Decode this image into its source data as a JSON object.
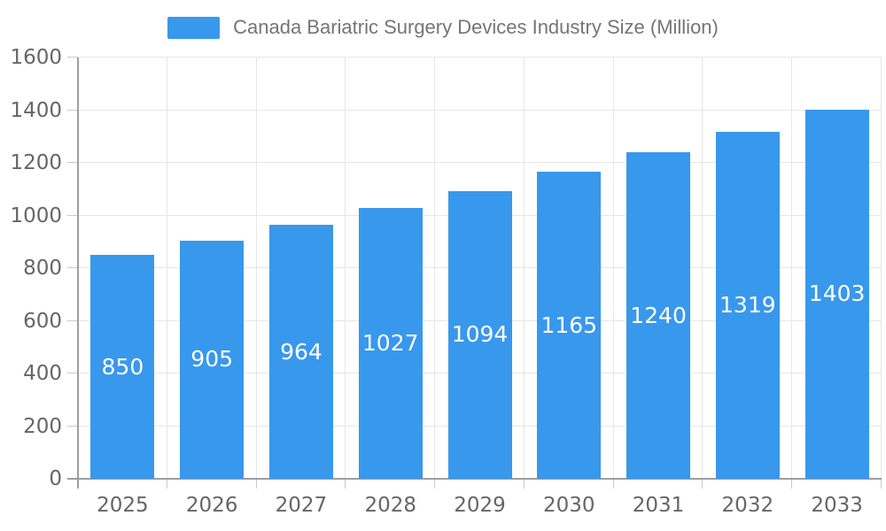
{
  "chart_data": {
    "type": "bar",
    "title": "Canada Bariatric Surgery Devices Industry Size (Million)",
    "categories": [
      "2025",
      "2026",
      "2027",
      "2028",
      "2029",
      "2030",
      "2031",
      "2032",
      "2033"
    ],
    "values": [
      850,
      905,
      964,
      1027,
      1094,
      1165,
      1240,
      1319,
      1403
    ],
    "series": [
      {
        "name": "Canada Bariatric Surgery Devices Industry Size (Million)",
        "values": [
          850,
          905,
          964,
          1027,
          1094,
          1165,
          1240,
          1319,
          1403
        ]
      }
    ],
    "xlabel": "",
    "ylabel": "",
    "ylim": [
      0,
      1600
    ],
    "ytick_step": 200,
    "yticks": [
      0,
      200,
      400,
      600,
      800,
      1000,
      1200,
      1400,
      1600
    ],
    "grid": true,
    "legend_position": "top-center",
    "value_label_position": "inside-center",
    "colors": {
      "bar": "#3898EC",
      "value_label": "#FFFFFF",
      "grid": "#E6E6E6",
      "axis": "#9E9E9E",
      "tick": "#C9C9C9",
      "tick_label": "#666666",
      "legend_text": "#757575",
      "background": "#FFFFFF"
    }
  }
}
